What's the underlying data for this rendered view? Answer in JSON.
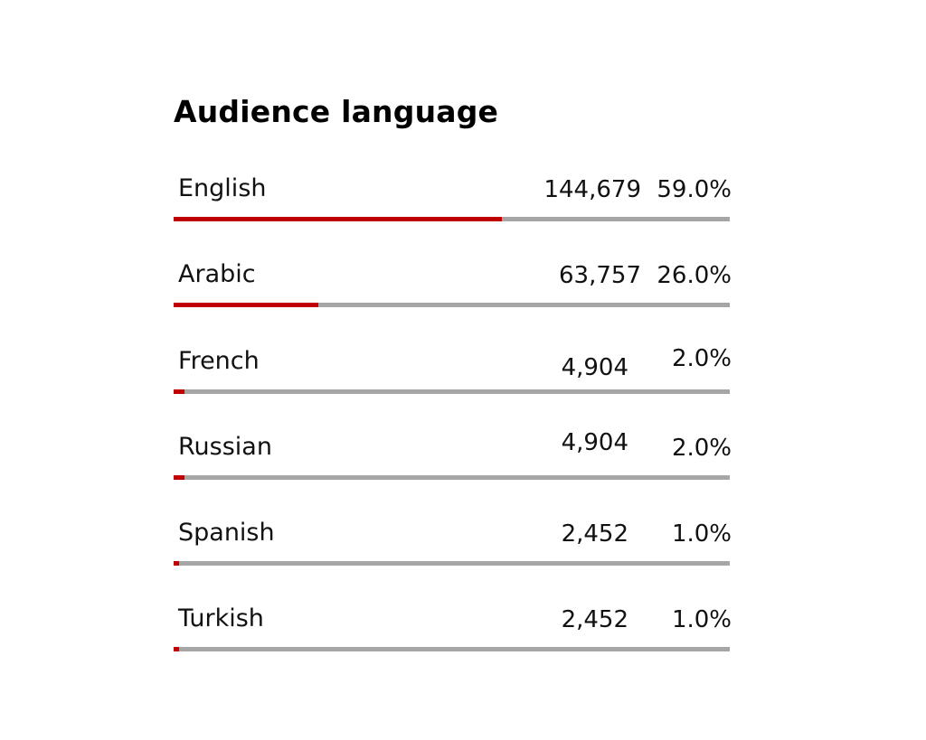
{
  "chart_data": {
    "type": "bar",
    "title": "Audience language",
    "categories": [
      "English",
      "Arabic",
      "French",
      "Russian",
      "Spanish",
      "Turkish"
    ],
    "values": [
      144679,
      63757,
      4904,
      4904,
      2452,
      2452
    ],
    "value_labels": [
      "144,679",
      "63,757",
      "4,904",
      "4,904",
      "2,452",
      "2,452"
    ],
    "percent_labels": [
      "59.0%",
      "26.0%",
      "2.0%",
      "2.0%",
      "1.0%",
      "1.0%"
    ],
    "percents": [
      59.0,
      26.0,
      2.0,
      2.0,
      1.0,
      1.0
    ],
    "colors": {
      "fill": "#c00000",
      "track": "#a6a6a6",
      "text": "#111111"
    }
  }
}
